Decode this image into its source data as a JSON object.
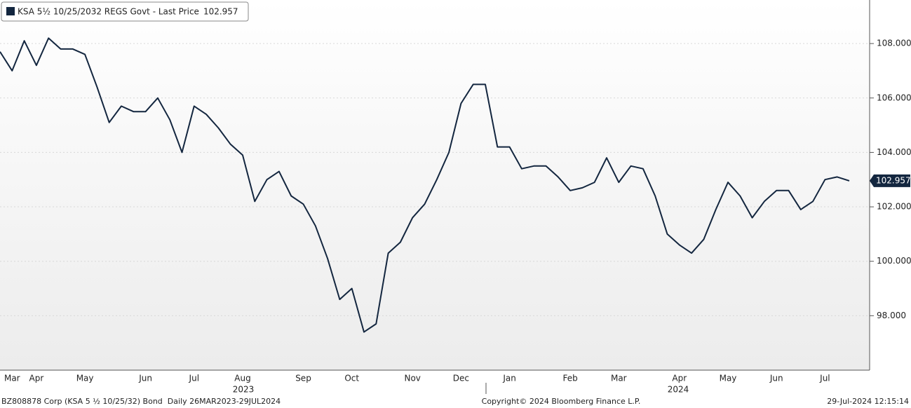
{
  "chart_data": {
    "type": "line",
    "categories": [
      null,
      "Mar",
      null,
      "Apr",
      null,
      null,
      null,
      "May",
      null,
      null,
      null,
      null,
      "Jun",
      null,
      null,
      null,
      "Jul",
      null,
      null,
      null,
      "Aug",
      null,
      null,
      null,
      null,
      "Sep",
      null,
      null,
      null,
      "Oct",
      null,
      null,
      null,
      null,
      "Nov",
      null,
      null,
      null,
      "Dec",
      null,
      null,
      null,
      "Jan",
      null,
      null,
      null,
      null,
      "Feb",
      null,
      null,
      null,
      "Mar",
      null,
      null,
      null,
      null,
      "Apr",
      null,
      null,
      null,
      "May",
      null,
      null,
      null,
      "Jun",
      null,
      null,
      null,
      "Jul",
      null,
      null
    ],
    "years": [
      "2023",
      "2024"
    ],
    "series": [
      {
        "name": "KSA 5½ 10/25/2032 REGS Govt - Last Price",
        "color": "#13263f",
        "values": [
          107.7,
          107.0,
          108.1,
          107.2,
          108.2,
          107.8,
          107.8,
          107.6,
          106.4,
          105.1,
          105.7,
          105.5,
          105.5,
          106.0,
          105.2,
          104.0,
          105.7,
          105.4,
          104.9,
          104.3,
          103.9,
          102.2,
          103.0,
          103.3,
          102.4,
          102.1,
          101.3,
          100.1,
          98.6,
          99.0,
          97.4,
          97.7,
          100.3,
          100.7,
          101.6,
          102.1,
          103.0,
          104.0,
          105.8,
          106.5,
          106.5,
          104.2,
          104.2,
          103.4,
          103.5,
          103.5,
          103.1,
          102.6,
          102.7,
          102.9,
          103.8,
          102.9,
          103.5,
          103.4,
          102.4,
          101.0,
          100.6,
          100.3,
          100.8,
          101.9,
          102.9,
          102.4,
          101.6,
          102.2,
          102.6,
          102.6,
          101.9,
          102.2,
          103.0,
          103.1,
          102.957
        ]
      }
    ],
    "ylim": [
      96.0,
      109.6
    ],
    "yticks": [
      {
        "value": 98,
        "label": "98.000"
      },
      {
        "value": 100,
        "label": "100.000"
      },
      {
        "value": 102,
        "label": "102.000"
      },
      {
        "value": 104,
        "label": "104.000"
      },
      {
        "value": 106,
        "label": "106.000"
      },
      {
        "value": 108,
        "label": "108.000"
      }
    ],
    "grid": true
  },
  "footer": {
    "left": "BZ808878 Corp (KSA 5 ½ 10/25/32) Bond  Daily 26MAR2023-29JUL2024",
    "center": "Copyright© 2024 Bloomberg Finance L.P.",
    "right": "29-Jul-2024 12:15:14"
  }
}
